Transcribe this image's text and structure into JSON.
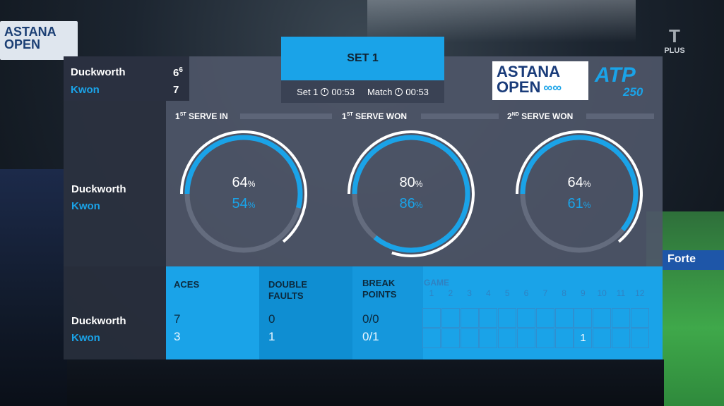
{
  "broadcast": {
    "plus_label": "PLUS",
    "venue_banner": "ASTANA OPEN",
    "sponsor": "Forte"
  },
  "header": {
    "set_title": "SET 1",
    "set_timer_label": "Set 1",
    "set_timer_value": "00:53",
    "match_timer_label": "Match",
    "match_timer_value": "00:53"
  },
  "logos": {
    "astana_line1": "ASTANA",
    "astana_line2": "OPEN",
    "atp": "ATP",
    "atp_level": "250"
  },
  "scoreboard": {
    "player1": {
      "name": "Duckworth",
      "score": "6",
      "tiebreak": "6"
    },
    "player2": {
      "name": "Kwon",
      "score": "7"
    }
  },
  "serve_stats": [
    {
      "label_num": "1",
      "label_sup": "ST",
      "label_rest": " SERVE IN",
      "p1": "64",
      "p2": "54",
      "p1_fraction": 0.64,
      "p2_fraction": 0.54
    },
    {
      "label_num": "1",
      "label_sup": "ST",
      "label_rest": " SERVE WON",
      "p1": "80",
      "p2": "86",
      "p1_fraction": 0.8,
      "p2_fraction": 0.86
    },
    {
      "label_num": "2",
      "label_sup": "ND",
      "label_rest": " SERVE WON",
      "p1": "64",
      "p2": "61",
      "p1_fraction": 0.64,
      "p2_fraction": 0.61
    }
  ],
  "percent_sign": "%",
  "bottom": {
    "aces_label": "ACES",
    "df_label_1": "DOUBLE",
    "df_label_2": "FAULTS",
    "bp_label_1": "BREAK",
    "bp_label_2": "POINTS",
    "game_label": "GAME",
    "p1": {
      "aces": "7",
      "double_faults": "0",
      "break_points": "0/0"
    },
    "p2": {
      "aces": "3",
      "double_faults": "1",
      "break_points": "0/1"
    },
    "games": [
      "1",
      "2",
      "3",
      "4",
      "5",
      "6",
      "7",
      "8",
      "9",
      "10",
      "11",
      "12"
    ],
    "p2_game_marks": {
      "9": "1"
    }
  },
  "colors": {
    "accent": "#1aa3e8",
    "panel": "#4e5668",
    "dark": "#2a3040"
  }
}
